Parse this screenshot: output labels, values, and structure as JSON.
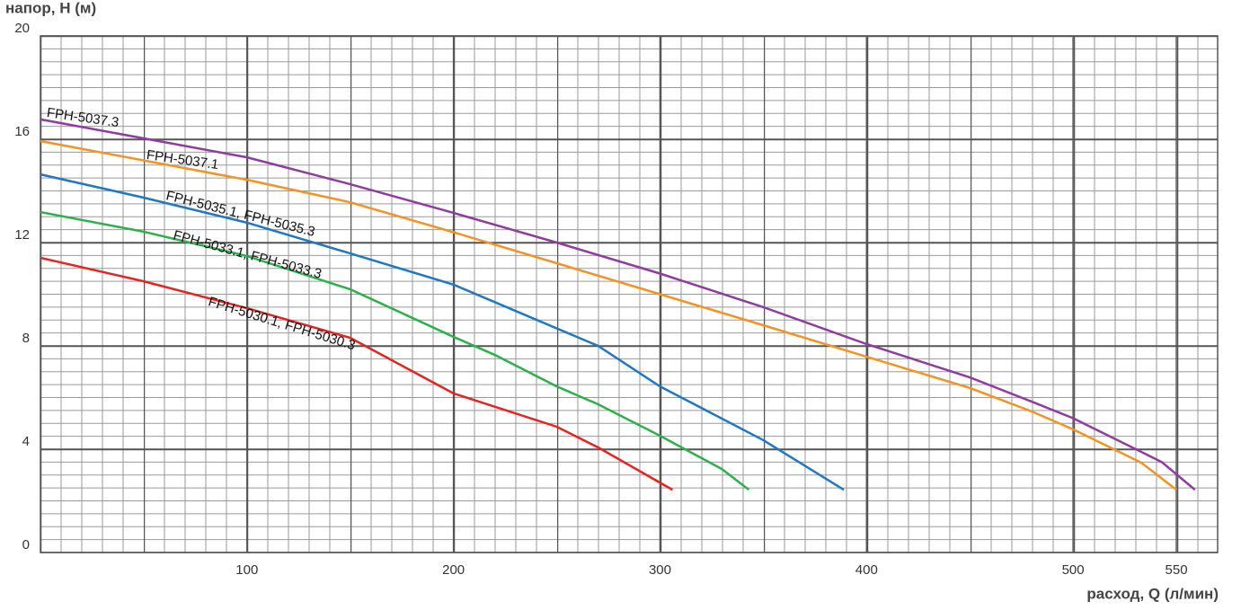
{
  "chart_data": {
    "type": "line",
    "y_label": "напор, H (м)",
    "x_label": "расход, Q (л/мин)",
    "xlim": [
      0,
      570
    ],
    "ylim": [
      0,
      20
    ],
    "xticks": [
      100,
      200,
      300,
      400,
      500,
      550
    ],
    "yticks": [
      0,
      4,
      8,
      12,
      16,
      20
    ],
    "grid": true,
    "series": [
      {
        "name": "FPH-5037.3",
        "color": "#8e3c9e",
        "x": [
          0,
          100,
          150,
          200,
          250,
          300,
          350,
          400,
          450,
          480,
          500,
          543,
          559
        ],
        "values": [
          16.77,
          15.3,
          14.26,
          13.15,
          12.0,
          10.8,
          9.5,
          8.07,
          6.78,
          5.84,
          5.2,
          3.5,
          2.43
        ]
      },
      {
        "name": "FPH-5037.1",
        "color": "#f39325",
        "x": [
          0,
          100,
          150,
          200,
          250,
          300,
          350,
          400,
          450,
          480,
          500,
          533,
          550
        ],
        "values": [
          15.93,
          14.43,
          13.56,
          12.4,
          11.2,
          10.0,
          8.8,
          7.58,
          6.37,
          5.46,
          4.77,
          3.48,
          2.43
        ]
      },
      {
        "name": "FPH-5035.1, FPH-5035.3",
        "color": "#1f78c1",
        "x": [
          0,
          50,
          100,
          150,
          200,
          270,
          300,
          350,
          389
        ],
        "values": [
          14.64,
          13.74,
          12.77,
          11.58,
          10.37,
          8.0,
          6.43,
          4.35,
          2.43
        ]
      },
      {
        "name": "FPH-5033.1, FPH-5033.3",
        "color": "#2bb04a",
        "x": [
          0,
          50,
          100,
          150,
          200,
          220,
          250,
          270,
          300,
          330,
          343
        ],
        "values": [
          13.18,
          12.42,
          11.48,
          10.19,
          8.35,
          7.65,
          6.43,
          5.74,
          4.52,
          3.23,
          2.43
        ]
      },
      {
        "name": "FPH-5030.1, FPH-5030.3",
        "color": "#e52421",
        "x": [
          0,
          50,
          100,
          150,
          200,
          250,
          270,
          306
        ],
        "values": [
          11.41,
          10.5,
          9.46,
          8.31,
          6.16,
          4.87,
          4.07,
          2.43
        ]
      }
    ]
  }
}
